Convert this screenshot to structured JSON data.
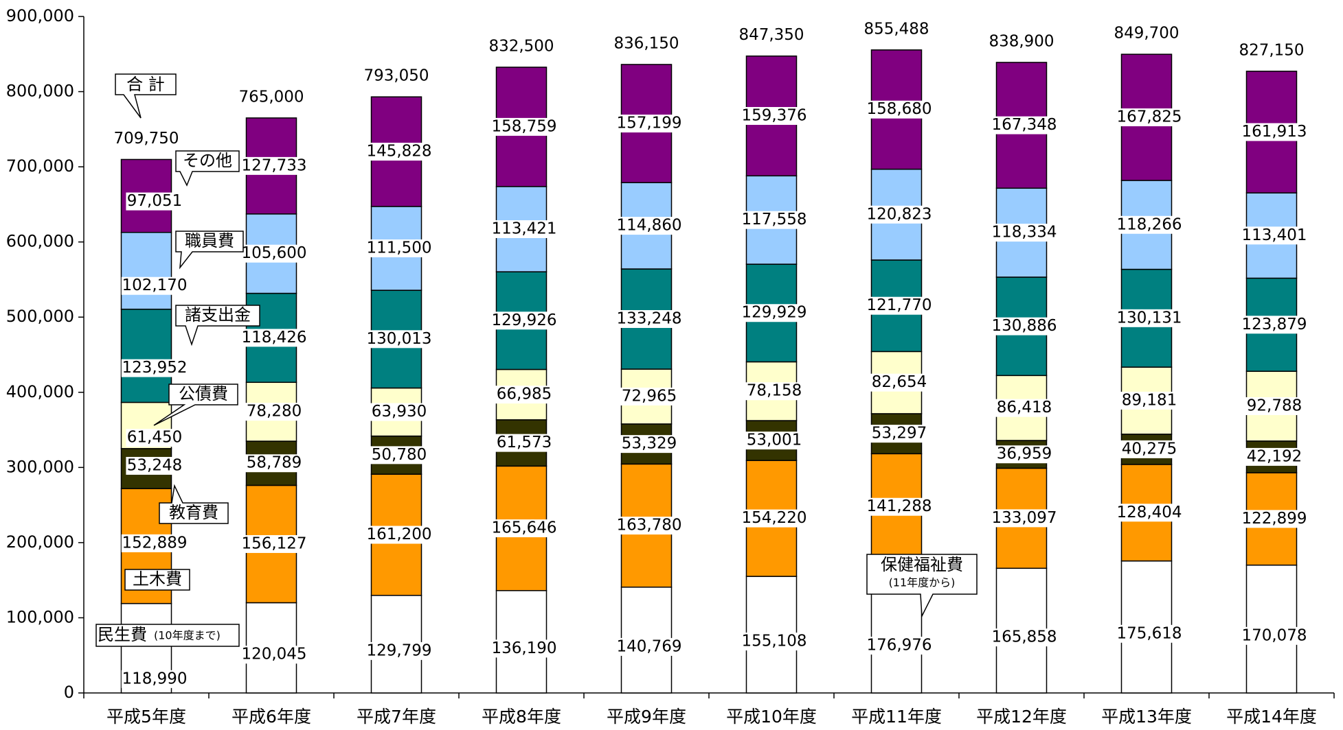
{
  "chart_data": {
    "type": "bar",
    "stacked": true,
    "categories": [
      "平成5年度",
      "平成6年度",
      "平成7年度",
      "平成8年度",
      "平成9年度",
      "平成10年度",
      "平成11年度",
      "平成12年度",
      "平成13年度",
      "平成14年度"
    ],
    "ylim": [
      0,
      900000
    ],
    "yticks": [
      "0",
      "100,000",
      "200,000",
      "300,000",
      "400,000",
      "500,000",
      "600,000",
      "700,000",
      "800,000",
      "900,000"
    ],
    "grid": false,
    "series": [
      {
        "key": "minsei",
        "color": "#ffffff",
        "values": [
          118990,
          120045,
          129799,
          136190,
          140769,
          155108,
          176976,
          165858,
          175618,
          170078
        ],
        "labels": [
          "118,990",
          "120,045",
          "129,799",
          "136,190",
          "140,769",
          "155,108",
          "176,976",
          "165,858",
          "175,618",
          "170,078"
        ]
      },
      {
        "key": "doboku",
        "color": "#ff9900",
        "values": [
          152889,
          156127,
          161200,
          165646,
          163780,
          154220,
          141288,
          133097,
          128404,
          122899
        ],
        "labels": [
          "152,889",
          "156,127",
          "161,200",
          "165,646",
          "163,780",
          "154,220",
          "141,288",
          "133,097",
          "128,404",
          "122,899"
        ]
      },
      {
        "key": "kyoiku",
        "color": "#333300",
        "values": [
          53248,
          58789,
          50780,
          61573,
          53329,
          53001,
          53297,
          36959,
          40275,
          42192
        ],
        "labels": [
          "53,248",
          "58,789",
          "50,780",
          "61,573",
          "53,329",
          "53,001",
          "53,297",
          "36,959",
          "40,275",
          "42,192"
        ]
      },
      {
        "key": "kosai",
        "color": "#ffffcc",
        "values": [
          61450,
          78280,
          63930,
          66985,
          72965,
          78158,
          82654,
          86418,
          89181,
          92788
        ],
        "labels": [
          "61,450",
          "78,280",
          "63,930",
          "66,985",
          "72,965",
          "78,158",
          "82,654",
          "86,418",
          "89,181",
          "92,788"
        ]
      },
      {
        "key": "shoshishutsu",
        "color": "#008080",
        "values": [
          123952,
          118426,
          130013,
          129926,
          133248,
          129929,
          121770,
          130886,
          130131,
          123879
        ],
        "labels": [
          "123,952",
          "118,426",
          "130,013",
          "129,926",
          "133,248",
          "129,929",
          "121,770",
          "130,886",
          "130,131",
          "123,879"
        ]
      },
      {
        "key": "shokuin",
        "color": "#99ccff",
        "values": [
          102170,
          105600,
          111500,
          113421,
          114860,
          117558,
          120823,
          118334,
          118266,
          113401
        ],
        "labels": [
          "102,170",
          "105,600",
          "111,500",
          "113,421",
          "114,860",
          "117,558",
          "120,823",
          "118,334",
          "118,266",
          "113,401"
        ]
      },
      {
        "key": "sonota",
        "color": "#800080",
        "values": [
          97051,
          127733,
          145828,
          158759,
          157199,
          159376,
          158680,
          167348,
          167825,
          161913
        ],
        "labels": [
          "97,051",
          "127,733",
          "145,828",
          "158,759",
          "157,199",
          "159,376",
          "158,680",
          "167,348",
          "167,825",
          "161,913"
        ]
      }
    ],
    "totals": [
      709750,
      765000,
      793050,
      832500,
      836150,
      847350,
      855488,
      838900,
      849700,
      827150
    ],
    "total_labels": [
      "709,750",
      "765,000",
      "793,050",
      "832,500",
      "836,150",
      "847,350",
      "855,488",
      "838,900",
      "849,700",
      "827,150"
    ],
    "annotations": {
      "total": "合 計",
      "sonota": "その他",
      "shokuin": "職員費",
      "shoshishutsu": "諸支出金",
      "kosai": "公債費",
      "kyoiku": "教育費",
      "doboku": "土木費",
      "minsei_main": "民生費",
      "minsei_note": "(10年度まで)",
      "hoken_main": "保健福祉費",
      "hoken_note": "(11年度から)"
    }
  }
}
